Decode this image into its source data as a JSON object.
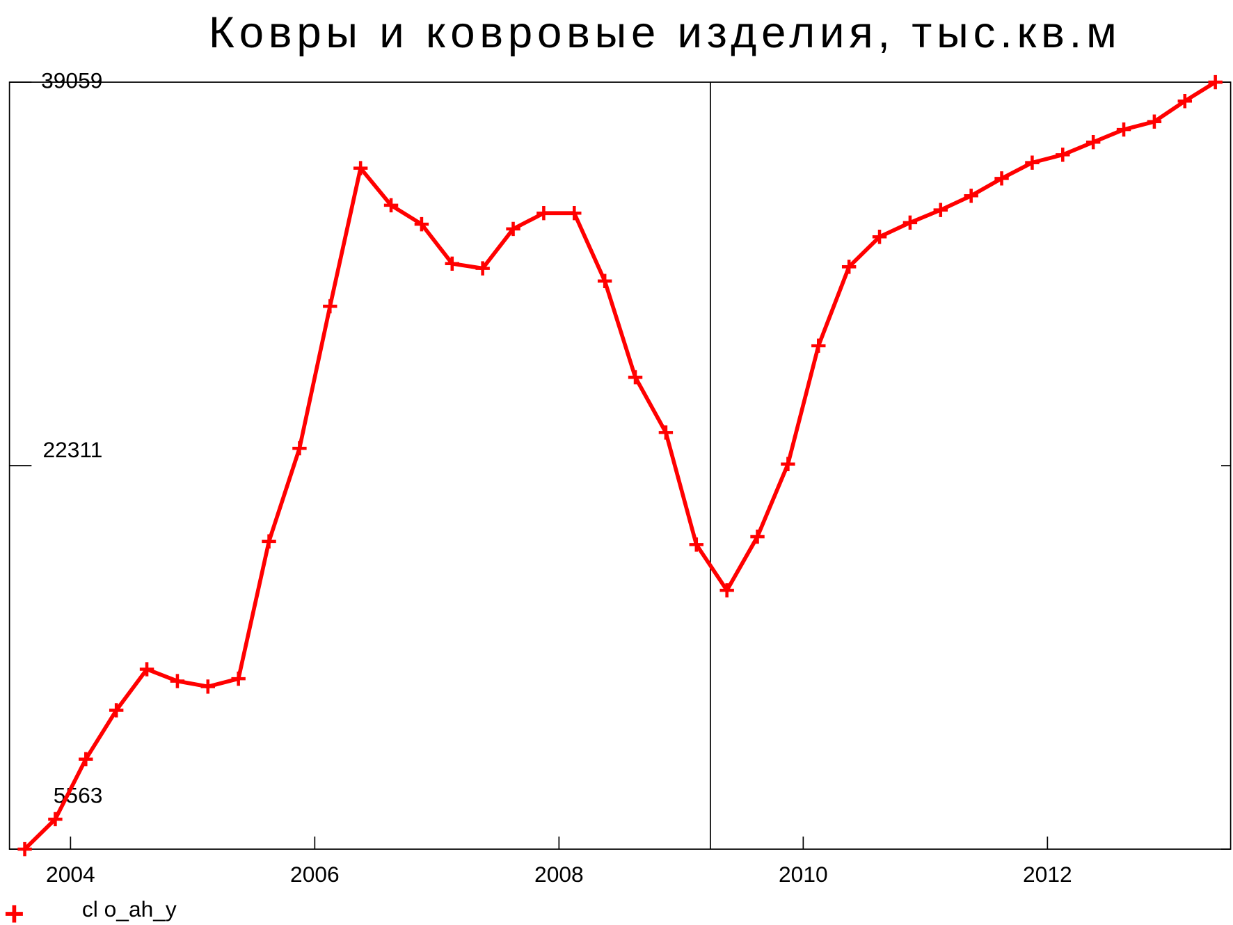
{
  "chart_data": {
    "type": "line",
    "title": "Ковры и ковровые изделия, тыс.кв.м",
    "x": [
      2004.125,
      2004.375,
      2004.625,
      2004.875,
      2005.125,
      2005.375,
      2005.625,
      2005.875,
      2006.125,
      2006.375,
      2006.625,
      2006.875,
      2007.125,
      2007.375,
      2007.625,
      2007.875,
      2008.125,
      2008.375,
      2008.625,
      2008.875,
      2009.125,
      2009.375,
      2009.625,
      2009.875,
      2010.125,
      2010.375,
      2010.625,
      2010.875,
      2011.125,
      2011.375,
      2011.625,
      2011.875,
      2012.125,
      2012.375,
      2012.625,
      2012.875,
      2013.125,
      2013.375,
      2013.625,
      2013.875
    ],
    "series": [
      {
        "name": "cl o_ah_y",
        "color": "#ff0000",
        "values": [
          5563,
          6872,
          9492,
          11628,
          13420,
          12903,
          12662,
          13007,
          19003,
          23069,
          29272,
          35303,
          33683,
          32856,
          31134,
          30927,
          32650,
          33339,
          33339,
          30375,
          26171,
          23759,
          18865,
          16866,
          19210,
          22380,
          27549,
          30996,
          32305,
          32925,
          33477,
          34097,
          34855,
          35544,
          35889,
          36440,
          36991,
          37336,
          38232,
          39059
        ]
      }
    ],
    "xlim": [
      2004,
      2014
    ],
    "xticks": [
      {
        "value": 2004.5,
        "label": "2004"
      },
      {
        "value": 2006.5,
        "label": "2006"
      },
      {
        "value": 2008.5,
        "label": "2008"
      },
      {
        "value": 2010.5,
        "label": "2010"
      },
      {
        "value": 2012.5,
        "label": "2012"
      }
    ],
    "ylim": [
      5563,
      39059
    ],
    "yticks": [
      5563,
      22311,
      39059
    ],
    "vline": 2009.74,
    "legend": "bottom-left"
  }
}
